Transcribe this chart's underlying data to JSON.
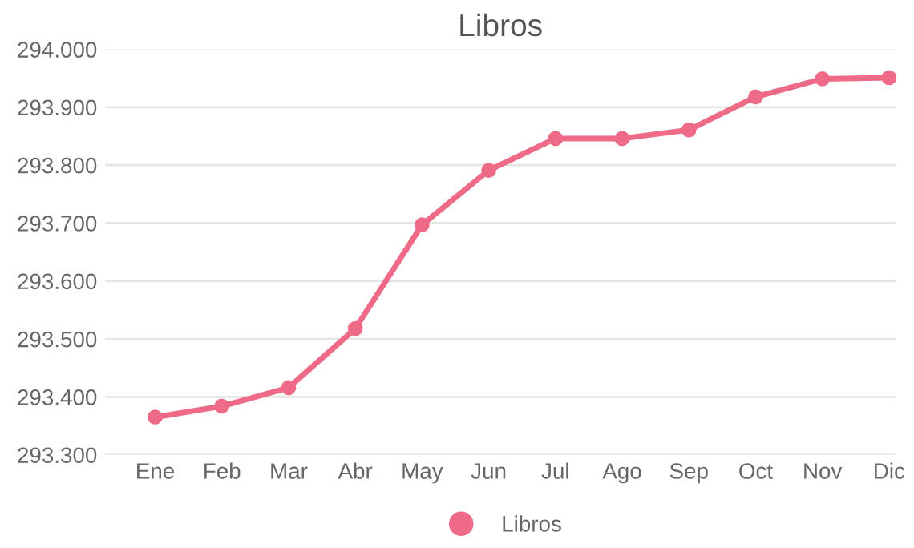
{
  "chart_data": {
    "type": "line",
    "title": "Libros",
    "categories": [
      "Ene",
      "Feb",
      "Mar",
      "Abr",
      "May",
      "Jun",
      "Jul",
      "Ago",
      "Sep",
      "Oct",
      "Nov",
      "Dic"
    ],
    "series": [
      {
        "name": "Libros",
        "color": "#ee6a87",
        "values": [
          293365,
          293384,
          293416,
          293518,
          293697,
          293791,
          293846,
          293846,
          293861,
          293918,
          293949,
          293951
        ]
      }
    ],
    "ylim": [
      293300,
      294000
    ],
    "yticks": [
      {
        "value": 293300,
        "label": "293.300"
      },
      {
        "value": 293400,
        "label": "293.400"
      },
      {
        "value": 293500,
        "label": "293.500"
      },
      {
        "value": 293600,
        "label": "293.600"
      },
      {
        "value": 293700,
        "label": "293.700"
      },
      {
        "value": 293800,
        "label": "293.800"
      },
      {
        "value": 293900,
        "label": "293.900"
      },
      {
        "value": 294000,
        "label": "294.000"
      }
    ],
    "grid": "y",
    "legend": "bottom",
    "marker": "circle",
    "line_style": "solid"
  }
}
